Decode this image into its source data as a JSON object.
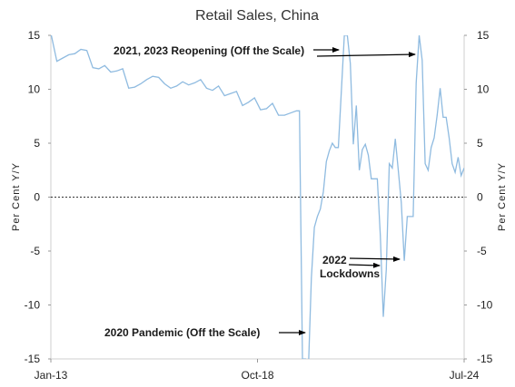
{
  "chart_data": {
    "type": "line",
    "title": "Retail Sales, China",
    "ylabel_left": "Per Cent Y/Y",
    "ylabel_right": "Per Cent Y/Y",
    "ylim": [
      -15,
      15
    ],
    "yticks": [
      15,
      10,
      5,
      0,
      -5,
      -10,
      -15
    ],
    "xlim": [
      "2013-01",
      "2024-07"
    ],
    "xticks": [
      "Jan-13",
      "Oct-18",
      "Jul-24"
    ],
    "grid": false,
    "zero_line": "dotted",
    "line_color": "#8fbbe0",
    "series": [
      {
        "x": [
          "2013-01",
          "2013-03",
          "2013-05",
          "2013-07",
          "2013-09",
          "2013-11",
          "2014-01",
          "2014-03",
          "2014-05",
          "2014-07",
          "2014-09",
          "2014-11",
          "2015-01",
          "2015-03",
          "2015-05",
          "2015-07",
          "2015-09",
          "2015-11",
          "2016-01",
          "2016-03",
          "2016-05",
          "2016-07",
          "2016-09",
          "2016-11",
          "2017-01",
          "2017-03",
          "2017-05",
          "2017-07",
          "2017-09",
          "2017-11",
          "2018-01",
          "2018-03",
          "2018-05",
          "2018-07",
          "2018-09",
          "2018-11",
          "2019-01",
          "2019-03",
          "2019-05",
          "2019-07",
          "2019-09",
          "2019-11",
          "2019-12",
          "2020-01",
          "2020-02",
          "2020-03",
          "2020-04",
          "2020-05",
          "2020-06",
          "2020-07",
          "2020-08",
          "2020-09",
          "2020-10",
          "2020-11",
          "2020-12",
          "2021-01",
          "2021-03",
          "2021-04",
          "2021-05",
          "2021-06",
          "2021-07",
          "2021-08",
          "2021-09",
          "2021-10",
          "2021-11",
          "2021-12",
          "2022-01",
          "2022-02",
          "2022-03",
          "2022-04",
          "2022-05",
          "2022-06",
          "2022-07",
          "2022-08",
          "2022-09",
          "2022-10",
          "2022-11",
          "2022-12",
          "2023-01",
          "2023-02",
          "2023-03",
          "2023-04",
          "2023-05",
          "2023-06",
          "2023-07",
          "2023-08",
          "2023-09",
          "2023-10",
          "2023-11",
          "2023-12",
          "2024-01",
          "2024-02",
          "2024-03",
          "2024-04",
          "2024-05",
          "2024-06",
          "2024-07"
        ],
        "values": [
          15.2,
          12.6,
          12.9,
          13.2,
          13.3,
          13.7,
          13.6,
          12.0,
          11.9,
          12.2,
          11.6,
          11.7,
          11.9,
          10.1,
          10.2,
          10.5,
          10.9,
          11.2,
          11.1,
          10.5,
          10.1,
          10.3,
          10.7,
          10.4,
          10.6,
          10.9,
          10.1,
          9.9,
          10.3,
          9.4,
          9.6,
          9.8,
          8.5,
          8.8,
          9.2,
          8.1,
          8.2,
          8.7,
          7.6,
          7.6,
          7.8,
          8.0,
          8.0,
          -15.0,
          -15.0,
          -15.8,
          -7.5,
          -2.8,
          -1.8,
          -1.1,
          0.5,
          3.3,
          4.3,
          5.0,
          4.6,
          4.6,
          15.0,
          15.0,
          12.4,
          4.9,
          8.5,
          2.5,
          4.4,
          4.9,
          3.9,
          1.7,
          1.7,
          1.7,
          -3.5,
          -11.1,
          -6.7,
          3.1,
          2.7,
          5.4,
          2.5,
          -0.5,
          -5.9,
          -1.8,
          -1.8,
          -1.8,
          10.6,
          15.0,
          12.7,
          3.1,
          2.5,
          4.6,
          5.5,
          7.6,
          10.1,
          7.4,
          7.4,
          5.5,
          3.1,
          2.3,
          3.7,
          2.0,
          2.7
        ]
      }
    ],
    "annotations": [
      {
        "text": "2021, 2023 Reopening (Off the Scale)"
      },
      {
        "text": "2020 Pandemic (Off the Scale)"
      },
      {
        "text_line1": "2022",
        "text_line2": "Lockdowns"
      }
    ]
  }
}
